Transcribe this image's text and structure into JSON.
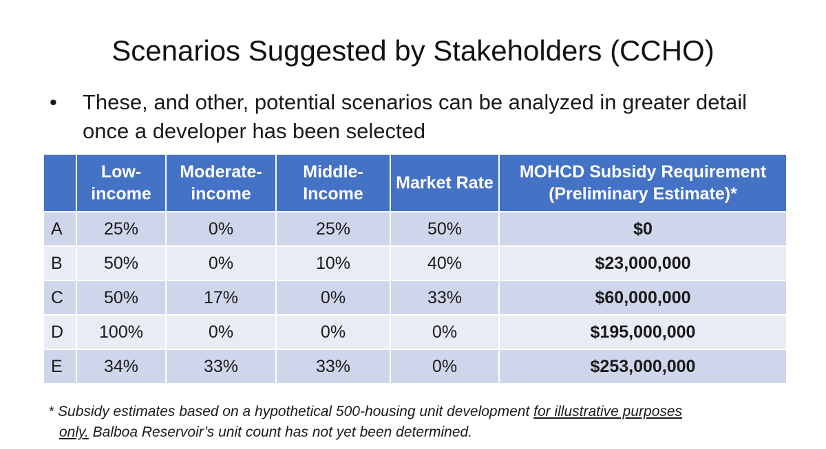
{
  "title": "Scenarios Suggested by Stakeholders (CCHO)",
  "bullet": {
    "symbol": "•",
    "text": "These, and other, potential scenarios can be analyzed in greater detail once a developer has been selected"
  },
  "table": {
    "headers": [
      "",
      "Low-income",
      "Moderate-income",
      "Middle-Income",
      "Market Rate",
      "MOHCD Subsidy Requirement (Preliminary Estimate)*"
    ],
    "rows": [
      {
        "label": "A",
        "low": "25%",
        "moderate": "0%",
        "middle": "25%",
        "market": "50%",
        "subsidy": "$0"
      },
      {
        "label": "B",
        "low": "50%",
        "moderate": "0%",
        "middle": "10%",
        "market": "40%",
        "subsidy": "$23,000,000"
      },
      {
        "label": "C",
        "low": "50%",
        "moderate": "17%",
        "middle": "0%",
        "market": "33%",
        "subsidy": "$60,000,000"
      },
      {
        "label": "D",
        "low": "100%",
        "moderate": "0%",
        "middle": "0%",
        "market": "0%",
        "subsidy": "$195,000,000"
      },
      {
        "label": "E",
        "low": "34%",
        "moderate": "33%",
        "middle": "33%",
        "market": "0%",
        "subsidy": "$253,000,000"
      }
    ]
  },
  "footnote": {
    "part1": "* Subsidy estimates based on a hypothetical 500-housing unit development ",
    "underlined_a": "for illustrative purposes",
    "underlined_b": "only.",
    "part2": " Balboa Reservoir’s unit count has not yet been determined."
  },
  "colors": {
    "header_bg": "#4472c4",
    "row_odd": "#cfd5ea",
    "row_even": "#e9ebf5"
  }
}
